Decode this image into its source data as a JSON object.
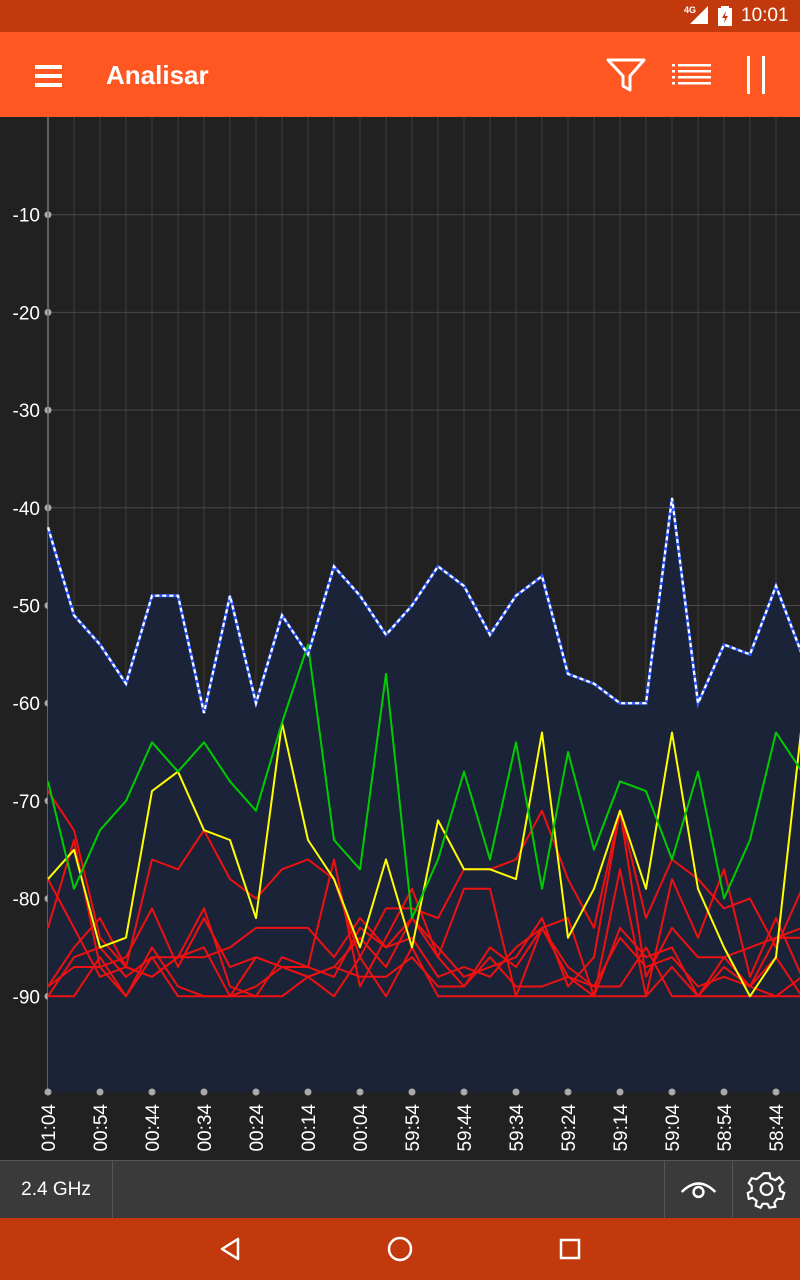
{
  "status_bar": {
    "network": "4G",
    "time": "10:01"
  },
  "app_bar": {
    "title": "Analisar",
    "icons": [
      "menu-icon",
      "filter-icon",
      "list-icon",
      "pause-icon"
    ]
  },
  "colors": {
    "accent": "#FF5722",
    "status_bar": "#C1390C",
    "plot_bg": "#212121",
    "area_fill": "#1B2338",
    "connected": "#FFFFFF",
    "strong": "#00CC00",
    "medium": "#FFFF00",
    "weak": "#EE1111"
  },
  "chart_data": {
    "type": "line",
    "title": "",
    "xlabel": "",
    "ylabel": "",
    "ylim": [
      -100,
      0
    ],
    "y_ticks": [
      -10,
      -20,
      -30,
      -40,
      -50,
      -60,
      -70,
      -80,
      -90
    ],
    "x_ticks": [
      "01:04",
      "00:54",
      "00:44",
      "00:34",
      "00:24",
      "00:14",
      "00:04",
      "59:54",
      "59:44",
      "59:34",
      "59:24",
      "59:14",
      "59:04",
      "58:54",
      "58:44"
    ],
    "grid": true,
    "samples_per_tick": 2,
    "series": [
      {
        "style": "connected",
        "values": [
          -42,
          -51,
          -54,
          -58,
          -49,
          -49,
          -61,
          -49,
          -60,
          -51,
          -55,
          -46,
          -49,
          -53,
          -50,
          -46,
          -48,
          -53,
          -49,
          -47,
          -57,
          -58,
          -60,
          -60,
          -39,
          -60,
          -54,
          -55,
          -48,
          -55
        ]
      },
      {
        "style": "strong",
        "values": [
          -68,
          -79,
          -73,
          -70,
          -64,
          -67,
          -64,
          -68,
          -71,
          -62,
          -54,
          -74,
          -77,
          -57,
          -82,
          -76,
          -67,
          -76,
          -64,
          -79,
          -65,
          -75,
          -68,
          -69,
          -76,
          -67,
          -80,
          -74,
          -63,
          -67
        ]
      },
      {
        "style": "medium",
        "values": [
          -78,
          -75,
          -85,
          -84,
          -69,
          -67,
          -73,
          -74,
          -82,
          -62,
          -74,
          -78,
          -85,
          -76,
          -85,
          -72,
          -77,
          -77,
          -78,
          -63,
          -84,
          -79,
          -71,
          -79,
          -63,
          -79,
          -85,
          -90,
          -86,
          -62
        ]
      },
      {
        "style": "weak",
        "values": [
          -69,
          -73,
          -84,
          -87,
          -76,
          -77,
          -73,
          -78,
          -80,
          -77,
          -76,
          -78,
          -86,
          -81,
          -81,
          -82,
          -77,
          -77,
          -76,
          -71,
          -78,
          -83,
          -71,
          -82,
          -76,
          -78,
          -81,
          -80,
          -85,
          -79
        ]
      },
      {
        "style": "weak",
        "values": [
          -83,
          -74,
          -87,
          -86,
          -81,
          -87,
          -82,
          -87,
          -86,
          -87,
          -87,
          -88,
          -83,
          -85,
          -82,
          -85,
          -88,
          -87,
          -86,
          -82,
          -89,
          -86,
          -71,
          -88,
          -83,
          -86,
          -86,
          -85,
          -84,
          -83
        ]
      },
      {
        "style": "weak",
        "values": [
          -89,
          -85,
          -82,
          -87,
          -88,
          -86,
          -86,
          -85,
          -83,
          -83,
          -83,
          -86,
          -82,
          -85,
          -84,
          -88,
          -87,
          -88,
          -85,
          -83,
          -88,
          -89,
          -84,
          -87,
          -86,
          -89,
          -88,
          -89,
          -84,
          -84
        ]
      },
      {
        "style": "weak",
        "values": [
          -90,
          -90,
          -86,
          -90,
          -85,
          -89,
          -90,
          -90,
          -89,
          -87,
          -88,
          -87,
          -84,
          -87,
          -82,
          -86,
          -89,
          -86,
          -89,
          -89,
          -88,
          -90,
          -83,
          -86,
          -85,
          -90,
          -87,
          -89,
          -86,
          -90
        ]
      },
      {
        "style": "weak",
        "values": [
          -90,
          -86,
          -85,
          -88,
          -86,
          -90,
          -90,
          -90,
          -90,
          -90,
          -88,
          -90,
          -86,
          -90,
          -85,
          -90,
          -90,
          -90,
          -90,
          -90,
          -90,
          -90,
          -90,
          -90,
          -87,
          -90,
          -90,
          -90,
          -90,
          -90
        ]
      },
      {
        "style": "weak",
        "values": [
          -78,
          -83,
          -88,
          -87,
          -88,
          -86,
          -81,
          -89,
          -90,
          -86,
          -87,
          -76,
          -89,
          -84,
          -79,
          -86,
          -79,
          -79,
          -90,
          -83,
          -82,
          -90,
          -77,
          -90,
          -78,
          -84,
          -77,
          -88,
          -82,
          -88
        ]
      },
      {
        "style": "weak",
        "values": [
          -89,
          -87,
          -87,
          -90,
          -86,
          -86,
          -85,
          -90,
          -86,
          -87,
          -88,
          -87,
          -88,
          -88,
          -86,
          -89,
          -89,
          -85,
          -87,
          -83,
          -87,
          -89,
          -89,
          -85,
          -90,
          -90,
          -86,
          -89,
          -90,
          -88
        ]
      }
    ]
  },
  "bottom_bar": {
    "band": "2.4 GHz",
    "icons": [
      "eye-icon",
      "settings-icon"
    ]
  },
  "nav_bar": {
    "icons": [
      "back-icon",
      "home-icon",
      "recents-icon"
    ]
  }
}
